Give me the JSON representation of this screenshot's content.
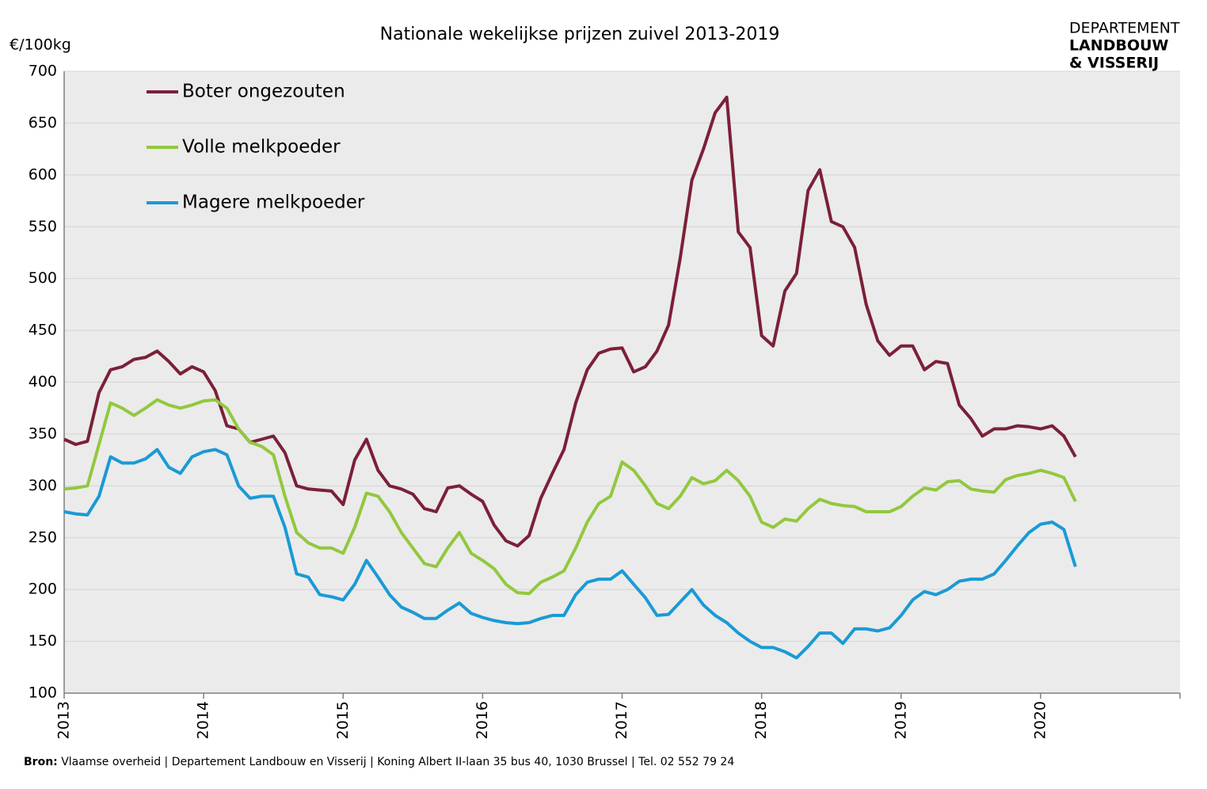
{
  "chart_data": {
    "type": "line",
    "title": "Nationale wekelijkse prijzen zuivel 2013-2019",
    "y_label": "€/100kg",
    "logo": [
      "DEPARTEMENT",
      "LANDBOUW",
      "& VISSERIJ"
    ],
    "source_label": "Bron:",
    "source": "Vlaamse overheid | Departement Landbouw en Visserij | Koning Albert II-laan 35 bus 40, 1030 Brussel | Tel. 02 552 79 24",
    "xlim": [
      2013,
      2021
    ],
    "xticks": [
      2013,
      2014,
      2015,
      2016,
      2017,
      2018,
      2019,
      2020
    ],
    "ylim": [
      100,
      700
    ],
    "yticks": [
      100,
      150,
      200,
      250,
      300,
      350,
      400,
      450,
      500,
      550,
      600,
      650,
      700
    ],
    "grid": true,
    "legend": "top-left",
    "x": [
      2013,
      2013.083,
      2013.167,
      2013.25,
      2013.333,
      2013.417,
      2013.5,
      2013.583,
      2013.667,
      2013.75,
      2013.833,
      2013.917,
      2014,
      2014.083,
      2014.167,
      2014.25,
      2014.333,
      2014.417,
      2014.5,
      2014.583,
      2014.667,
      2014.75,
      2014.833,
      2014.917,
      2015,
      2015.083,
      2015.167,
      2015.25,
      2015.333,
      2015.417,
      2015.5,
      2015.583,
      2015.667,
      2015.75,
      2015.833,
      2015.917,
      2016,
      2016.083,
      2016.167,
      2016.25,
      2016.333,
      2016.417,
      2016.5,
      2016.583,
      2016.667,
      2016.75,
      2016.833,
      2016.917,
      2017,
      2017.083,
      2017.167,
      2017.25,
      2017.333,
      2017.417,
      2017.5,
      2017.583,
      2017.667,
      2017.75,
      2017.833,
      2017.917,
      2018,
      2018.083,
      2018.167,
      2018.25,
      2018.333,
      2018.417,
      2018.5,
      2018.583,
      2018.667,
      2018.75,
      2018.833,
      2018.917,
      2019,
      2019.083,
      2019.167,
      2019.25,
      2019.333,
      2019.417,
      2019.5,
      2019.583,
      2019.667,
      2019.75,
      2019.833,
      2019.917,
      2020,
      2020.083,
      2020.167,
      2020.25
    ],
    "series": [
      {
        "name": "Boter ongezouten",
        "color": "#7b2038",
        "values": [
          345,
          340,
          343,
          390,
          412,
          415,
          422,
          424,
          430,
          420,
          408,
          415,
          410,
          392,
          358,
          355,
          342,
          345,
          348,
          332,
          300,
          297,
          296,
          295,
          282,
          325,
          345,
          315,
          300,
          297,
          292,
          278,
          275,
          298,
          300,
          292,
          285,
          262,
          247,
          242,
          252,
          288,
          312,
          335,
          380,
          412,
          428,
          432,
          433,
          410,
          415,
          430,
          455,
          520,
          595,
          625,
          660,
          675,
          545,
          530,
          445,
          435,
          488,
          505,
          585,
          605,
          555,
          550,
          530,
          475,
          440,
          426,
          435,
          435,
          412,
          420,
          418,
          378,
          365,
          348,
          355,
          355,
          358,
          357,
          355,
          358,
          348,
          328
        ]
      },
      {
        "name": "Volle melkpoeder",
        "color": "#92c83e",
        "values": [
          297,
          298,
          300,
          340,
          380,
          375,
          368,
          375,
          383,
          378,
          375,
          378,
          382,
          383,
          375,
          355,
          342,
          338,
          330,
          290,
          255,
          245,
          240,
          240,
          235,
          260,
          293,
          290,
          275,
          255,
          240,
          225,
          222,
          240,
          255,
          235,
          228,
          220,
          205,
          197,
          196,
          207,
          212,
          218,
          240,
          265,
          283,
          290,
          323,
          315,
          300,
          283,
          278,
          290,
          308,
          302,
          305,
          315,
          305,
          290,
          265,
          260,
          268,
          266,
          278,
          287,
          283,
          281,
          280,
          275,
          275,
          275,
          280,
          290,
          298,
          296,
          304,
          305,
          297,
          295,
          294,
          306,
          310,
          312,
          315,
          312,
          308,
          285
        ]
      },
      {
        "name": "Magere melkpoeder",
        "color": "#1a9ad6",
        "values": [
          275,
          273,
          272,
          290,
          328,
          322,
          322,
          326,
          335,
          318,
          312,
          328,
          333,
          335,
          330,
          300,
          288,
          290,
          290,
          260,
          215,
          212,
          195,
          193,
          190,
          205,
          228,
          212,
          195,
          183,
          178,
          172,
          172,
          180,
          187,
          177,
          173,
          170,
          168,
          167,
          168,
          172,
          175,
          175,
          195,
          207,
          210,
          210,
          218,
          205,
          192,
          175,
          176,
          188,
          200,
          185,
          175,
          168,
          158,
          150,
          144,
          144,
          140,
          134,
          145,
          158,
          158,
          148,
          162,
          162,
          160,
          163,
          175,
          190,
          198,
          195,
          200,
          208,
          210,
          210,
          215,
          228,
          242,
          255,
          263,
          265,
          258,
          222
        ]
      }
    ]
  }
}
